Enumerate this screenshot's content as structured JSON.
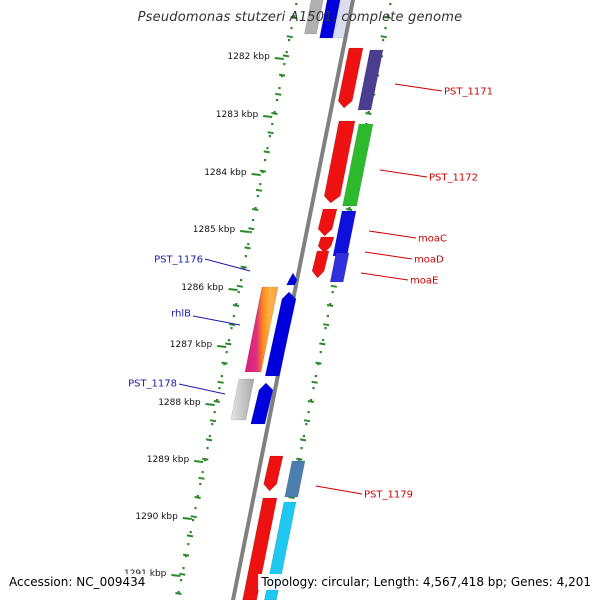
{
  "title": "Pseudomonas stutzeri A1501, complete genome",
  "accession": "Accession: NC_009434",
  "summary": "Topology: circular; Length: 4,567,418 bp; Genes: 4,201",
  "scale_labels": [
    "1282 kbp",
    "1283 kbp",
    "1284 kbp",
    "1285 kbp",
    "1286 kbp",
    "1287 kbp",
    "1288 kbp",
    "1289 kbp",
    "1290 kbp",
    "1291 kbp"
  ],
  "gene_labels": {
    "forward": [
      "PST_1171",
      "PST_1172",
      "moaC",
      "moaD",
      "moaE",
      "PST_1179"
    ],
    "reverse": [
      "PST_1176",
      "rhlB",
      "PST_1178"
    ]
  },
  "colors": {
    "forward_label": "#cc0000",
    "reverse_label": "#1a1aaa",
    "tick": "#2a8a2a",
    "backbone": "#808080"
  }
}
